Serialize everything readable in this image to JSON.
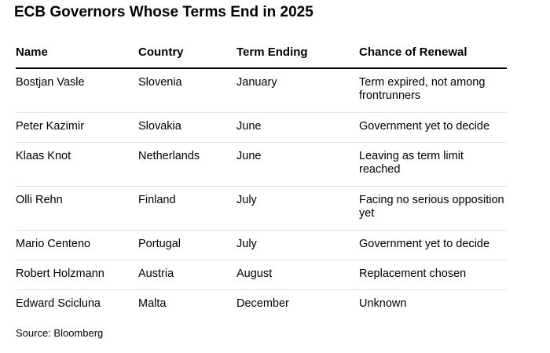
{
  "title": "ECB Governors Whose Terms End in 2025",
  "table": {
    "headers": [
      "Name",
      "Country",
      "Term Ending",
      "Chance of Renewal"
    ],
    "rows": [
      [
        "Bostjan Vasle",
        "Slovenia",
        "January",
        "Term expired, not among frontrunners"
      ],
      [
        "Peter Kazimir",
        "Slovakia",
        "June",
        "Government yet to decide"
      ],
      [
        "Klaas Knot",
        "Netherlands",
        "June",
        "Leaving as term limit reached"
      ],
      [
        "Olli Rehn",
        "Finland",
        "July",
        "Facing no serious opposition yet"
      ],
      [
        "Mario Centeno",
        "Portugal",
        "July",
        "Government yet to decide"
      ],
      [
        "Robert Holzmann",
        "Austria",
        "August",
        "Replacement chosen"
      ],
      [
        "Edward Scicluna",
        "Malta",
        "December",
        "Unknown"
      ]
    ]
  },
  "source": "Source: Bloomberg"
}
